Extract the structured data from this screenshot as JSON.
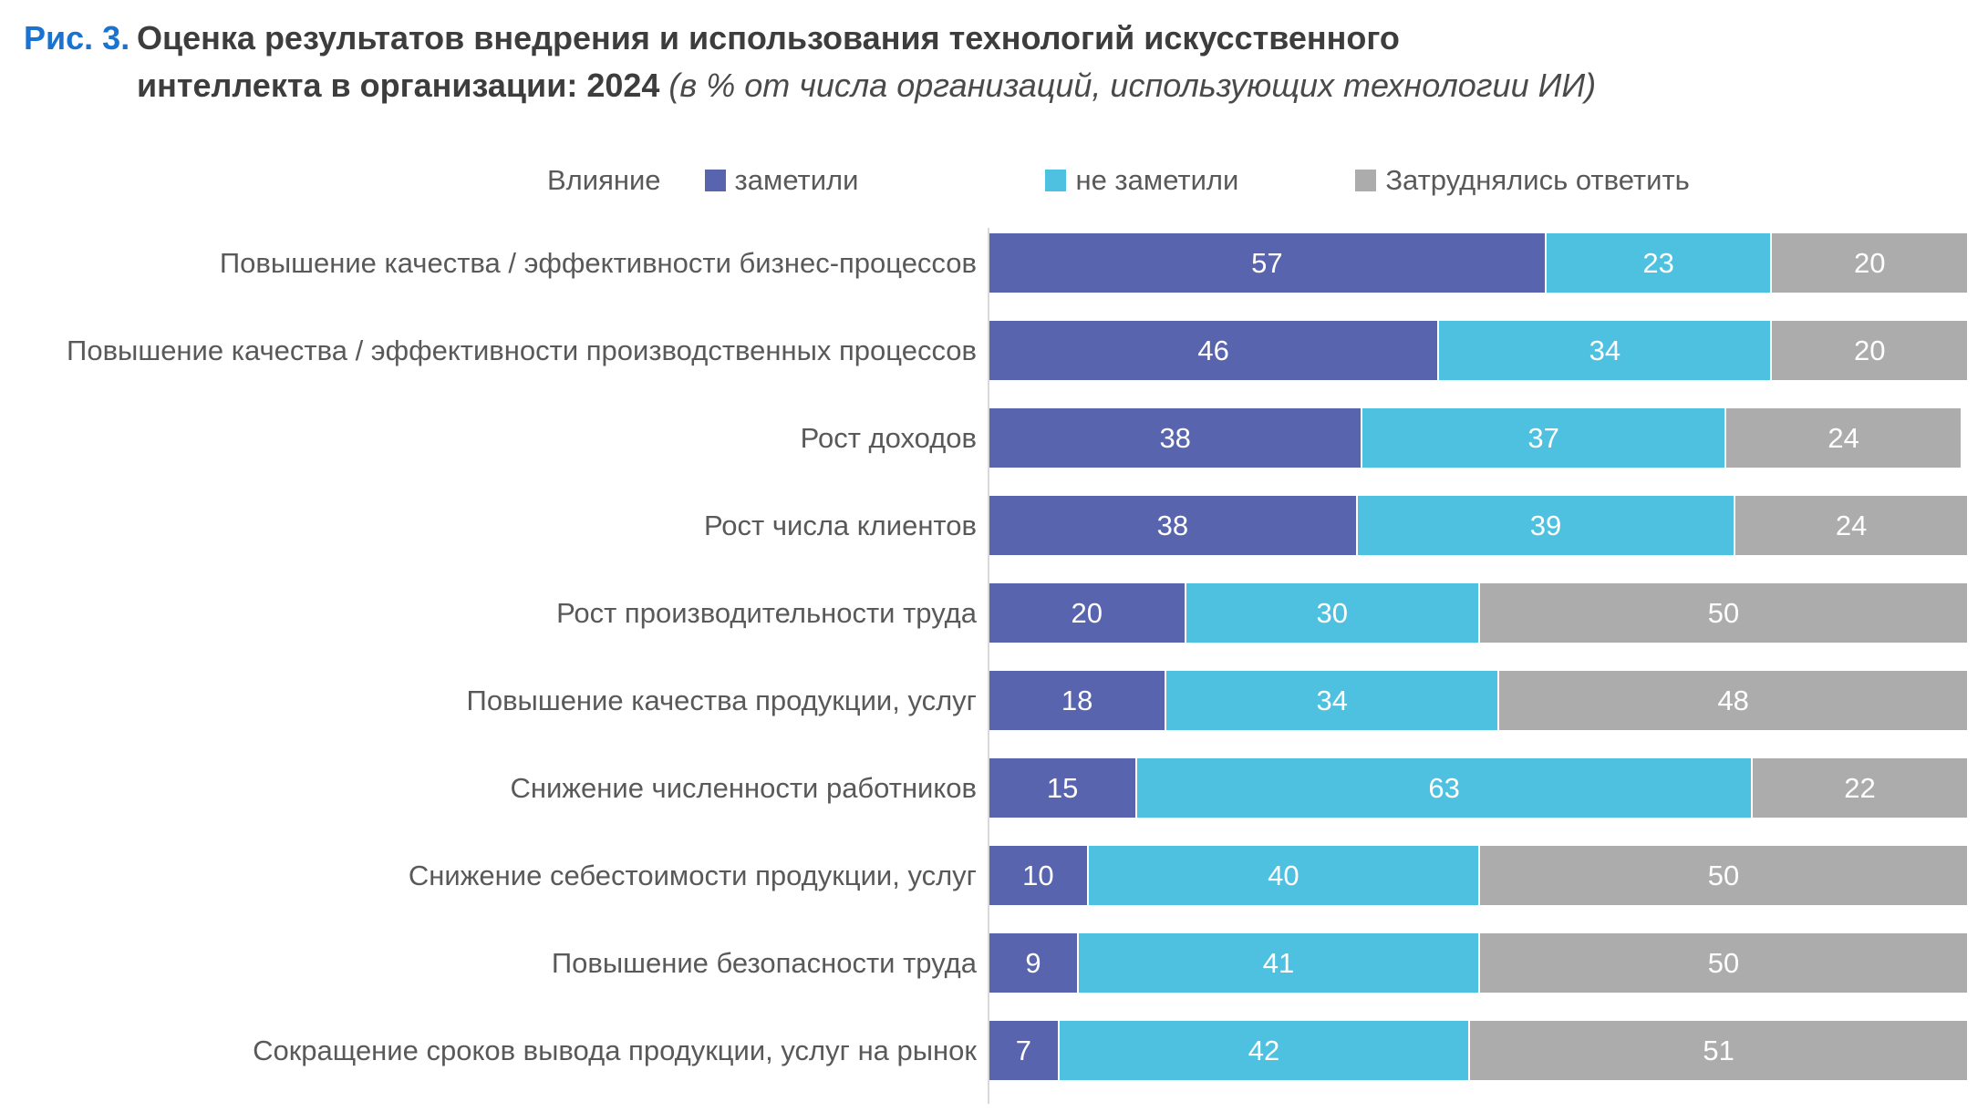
{
  "figure": {
    "fig_label": "Рис. 3.",
    "title_line1": "Оценка результатов внедрения и использования технологий искусственного",
    "title_line2": "интеллекта в организации: 2024",
    "title_note": "(в % от числа организаций, использующих технологии ИИ)"
  },
  "legend": {
    "label": "Влияние",
    "items": [
      {
        "label": "заметили",
        "color": "#5865ae"
      },
      {
        "label": "не заметили",
        "color": "#4fc1e0"
      },
      {
        "label": "Затруднялись ответить",
        "color": "#adacac"
      }
    ]
  },
  "colors": {
    "noticed": "#5865ae",
    "not_noticed": "#4fc1e0",
    "undecided": "#adacac",
    "fig_label_blue": "#1a73d1",
    "title_text": "#3d3d3d",
    "axis_line": "#d9d9d9",
    "category_text": "#595959",
    "value_text": "#ffffff"
  },
  "chart_data": {
    "type": "bar",
    "orientation": "horizontal",
    "stacked": true,
    "unit": "% от числа организаций, использующих технологии ИИ",
    "xlim": [
      0,
      100
    ],
    "grid": false,
    "legend_position": "top",
    "categories": [
      "Повышение качества / эффективности бизнес-процессов",
      "Повышение качества / эффективности производственных процессов",
      "Рост доходов",
      "Рост числа клиентов",
      "Рост производительности труда",
      "Повышение качества продукции, услуг",
      "Снижение численности работников",
      "Снижение себестоимости продукции, услуг",
      "Повышение безопасности труда",
      "Сокращение сроков вывода продукции, услуг на рынок"
    ],
    "series": [
      {
        "name": "заметили",
        "color": "#5865ae",
        "values": [
          57,
          46,
          38,
          38,
          20,
          18,
          15,
          10,
          9,
          7
        ]
      },
      {
        "name": "не заметили",
        "color": "#4fc1e0",
        "values": [
          23,
          34,
          37,
          39,
          30,
          34,
          63,
          40,
          41,
          42
        ]
      },
      {
        "name": "Затруднялись ответить",
        "color": "#adacac",
        "values": [
          20,
          20,
          24,
          24,
          50,
          48,
          22,
          50,
          50,
          51
        ]
      }
    ]
  }
}
